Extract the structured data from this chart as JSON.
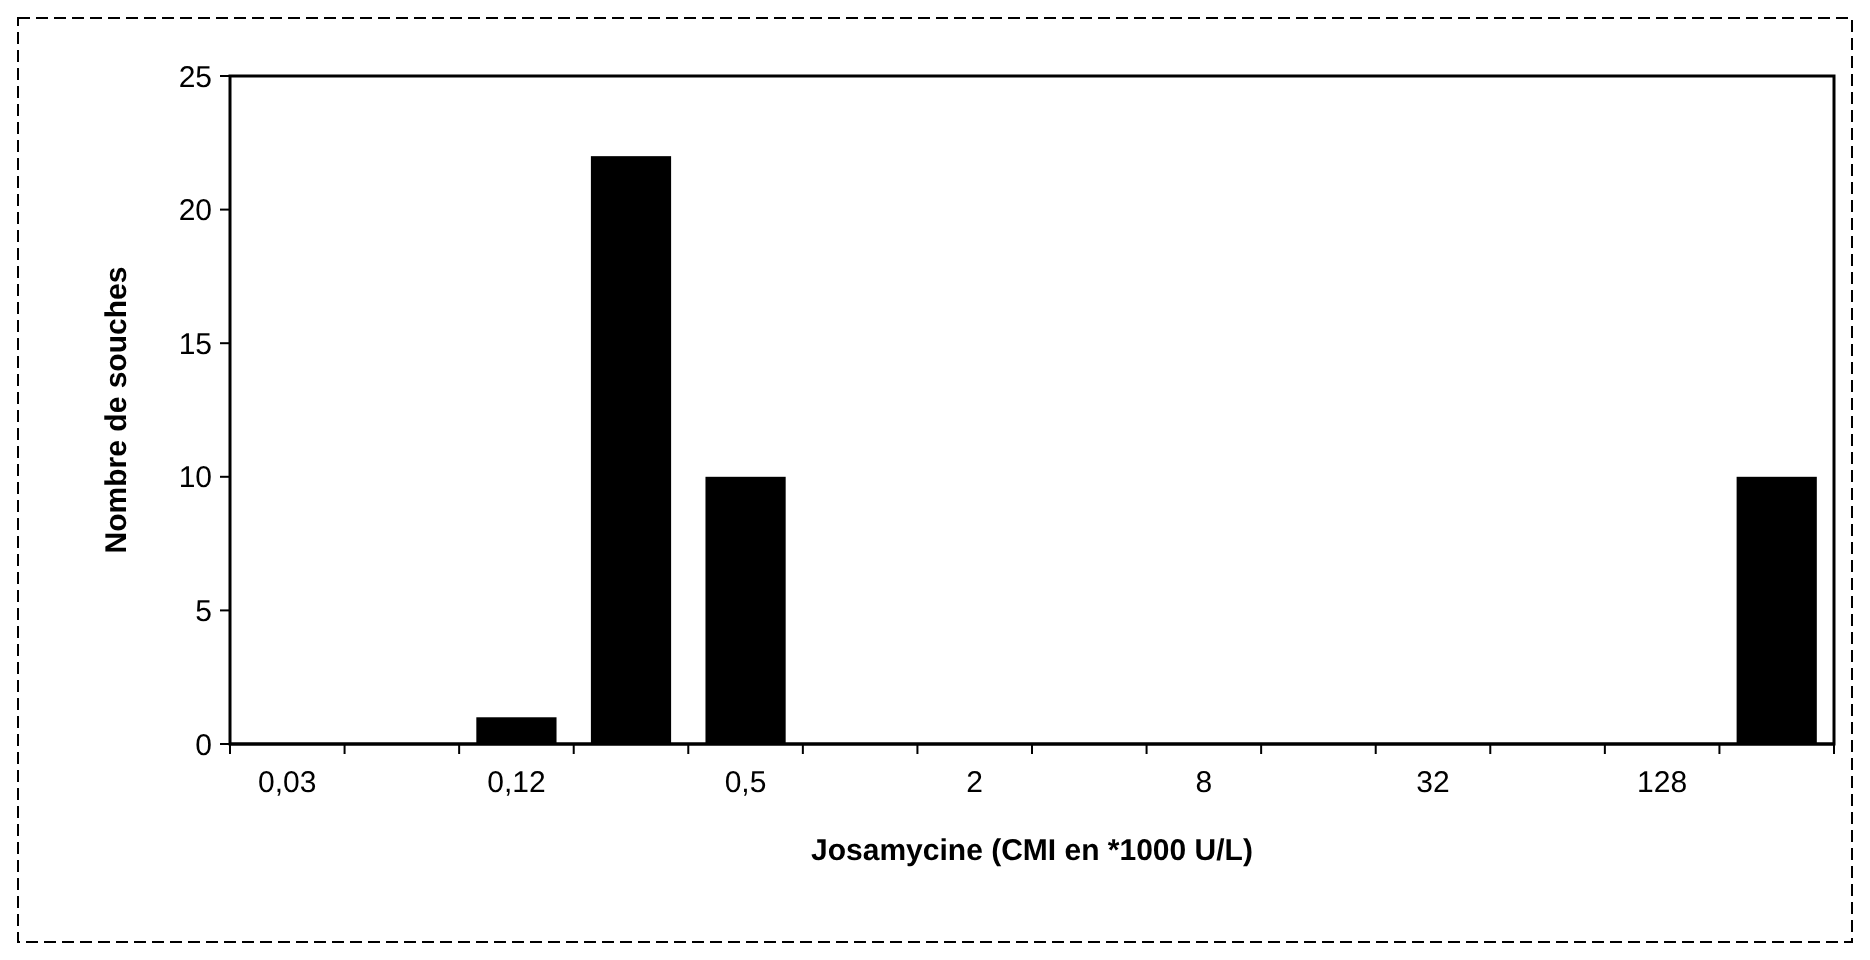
{
  "chart_data": {
    "type": "bar",
    "xlabel": "Josamycine (CMI en *1000 U/L)",
    "ylabel": "Nombre de souches",
    "categories": [
      "0,03",
      null,
      "0,12",
      null,
      "0,5",
      null,
      "2",
      null,
      "8",
      null,
      "32",
      null,
      "128",
      null
    ],
    "values": [
      0,
      0,
      1,
      22,
      10,
      0,
      0,
      0,
      0,
      0,
      0,
      0,
      0,
      10
    ],
    "color": "#000000",
    "ylim": [
      0,
      25
    ],
    "yticks": [
      0,
      5,
      10,
      15,
      20,
      25
    ],
    "grid": false
  }
}
